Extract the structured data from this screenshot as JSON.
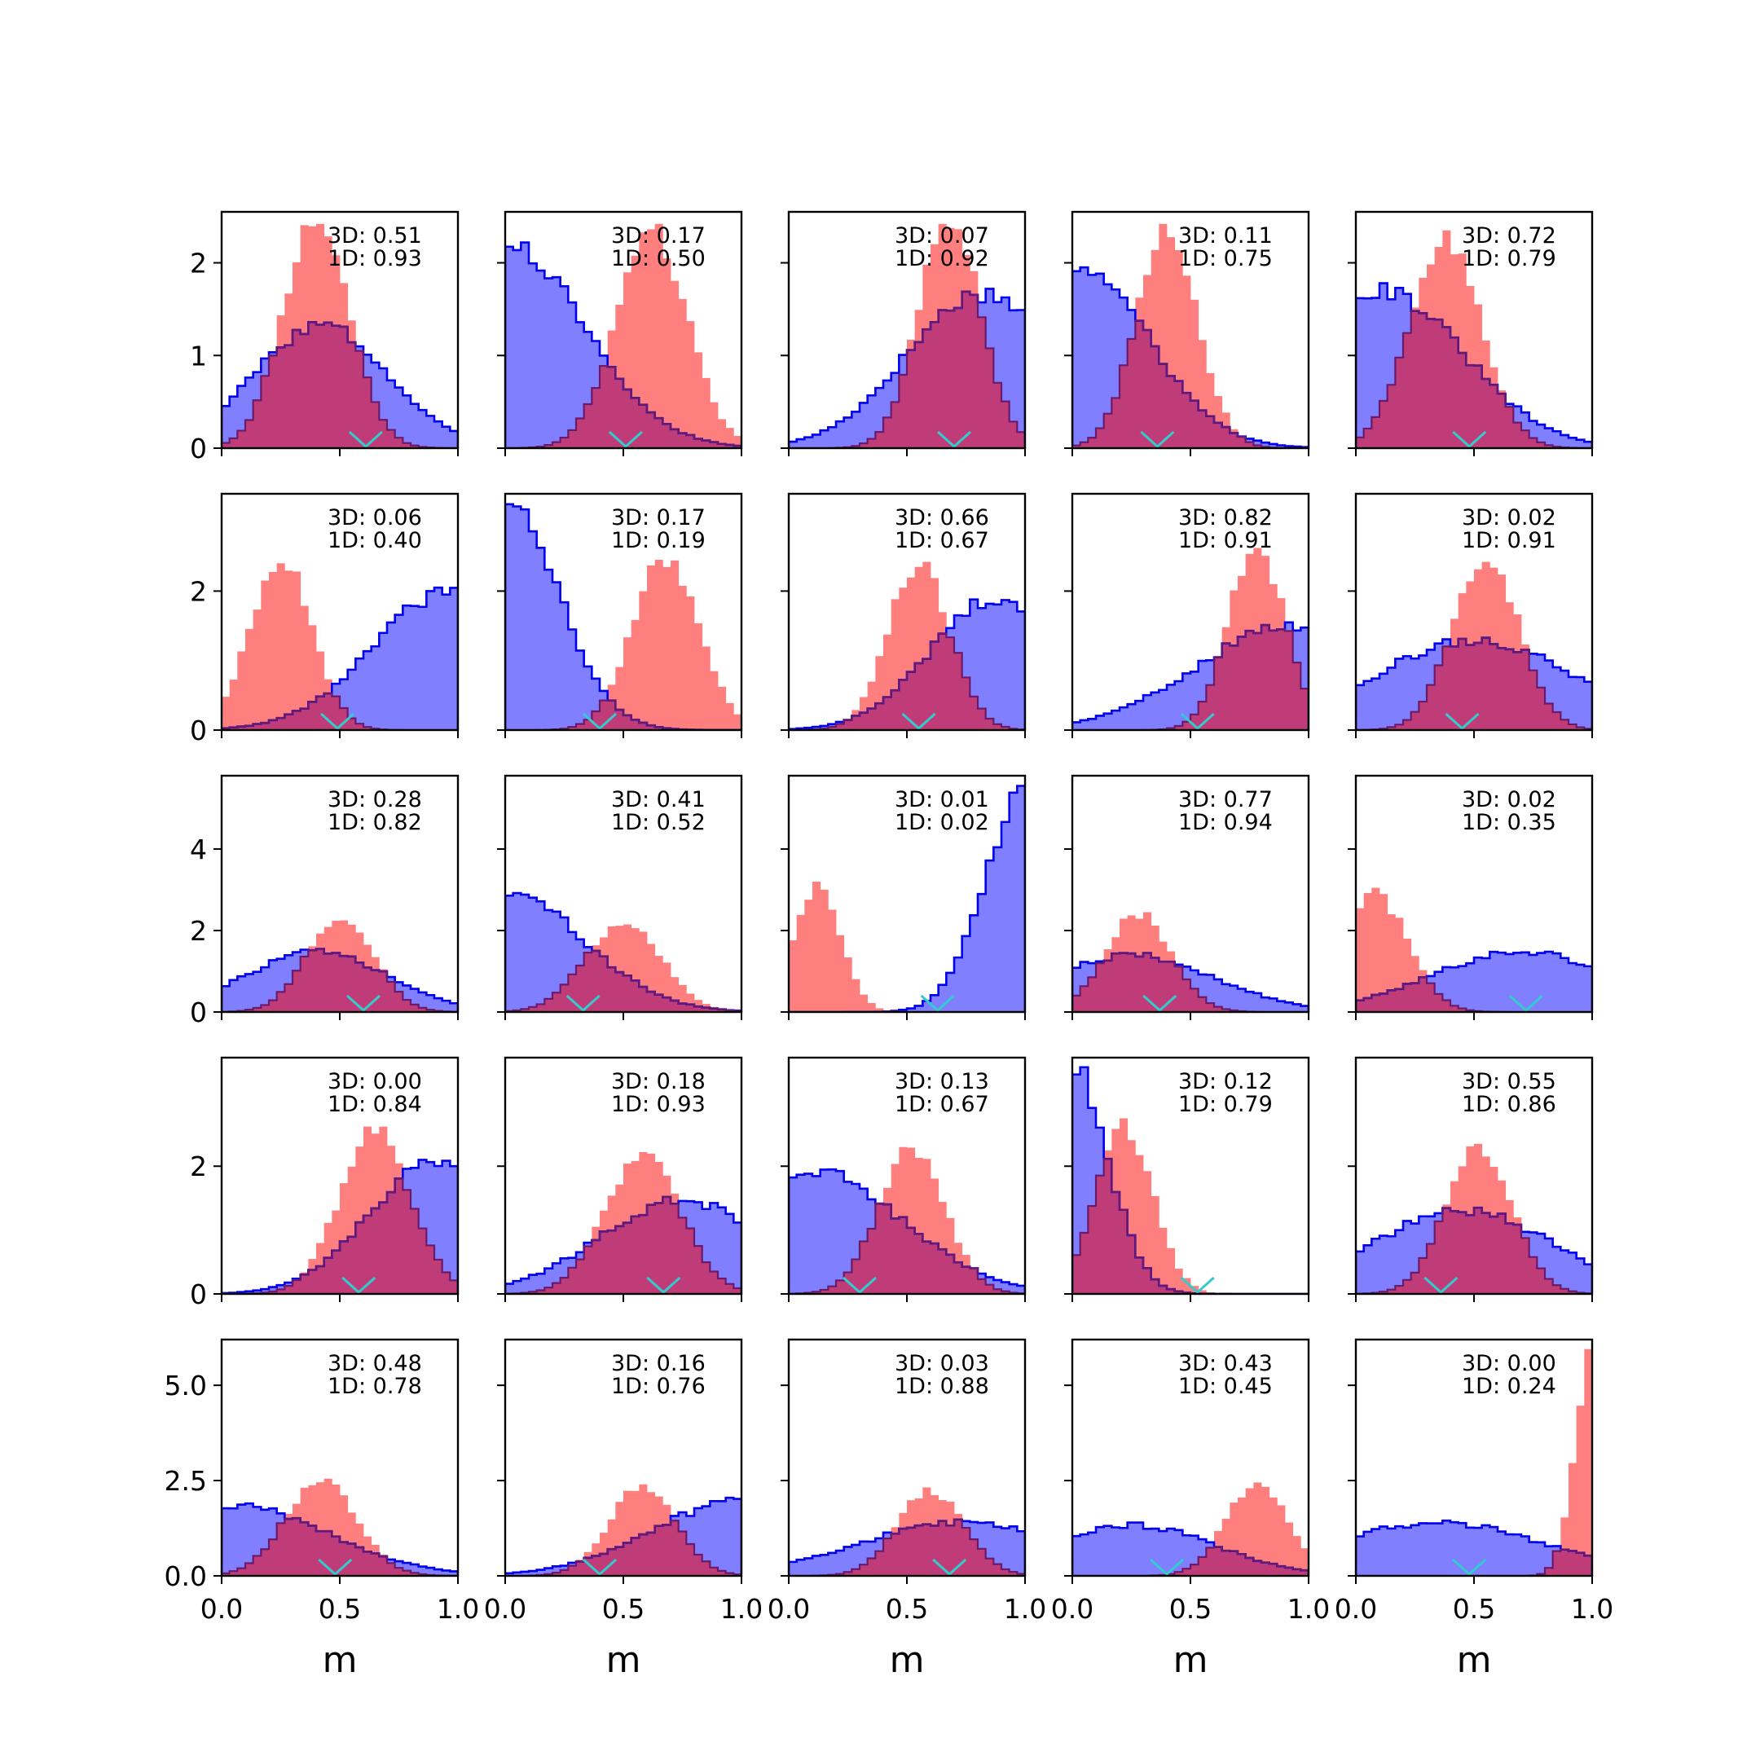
{
  "chart_data": {
    "type": "histogram-grid",
    "xlabel": "m",
    "xlim": [
      0,
      1
    ],
    "xticks": [
      "0.0",
      "0.5",
      "1.0"
    ],
    "bins": 30,
    "series_colors": {
      "wide": "#0000ee",
      "wide_fill": "#7f7fff",
      "narrow_fill": "#ff7f7f",
      "overlap": "#c03c78",
      "marker": "#33cccc"
    },
    "rows": [
      {
        "ylim": [
          0,
          2.55
        ],
        "yticks": [
          {
            "v": 0,
            "label": "0"
          },
          {
            "v": 1,
            "label": "1"
          },
          {
            "v": 2,
            "label": "2"
          }
        ]
      },
      {
        "ylim": [
          0,
          3.4
        ],
        "yticks": [
          {
            "v": 0,
            "label": "0"
          },
          {
            "v": 2,
            "label": "2"
          }
        ]
      },
      {
        "ylim": [
          0,
          5.8
        ],
        "yticks": [
          {
            "v": 0,
            "label": "0"
          },
          {
            "v": 2,
            "label": "2"
          },
          {
            "v": 4,
            "label": "4"
          }
        ]
      },
      {
        "ylim": [
          0,
          3.7
        ],
        "yticks": [
          {
            "v": 0,
            "label": "0"
          },
          {
            "v": 2,
            "label": "2"
          }
        ]
      },
      {
        "ylim": [
          0,
          6.2
        ],
        "yticks": [
          {
            "v": 0,
            "label": "0.0"
          },
          {
            "v": 2.5,
            "label": "2.5"
          },
          {
            "v": 5,
            "label": "5.0"
          }
        ]
      }
    ],
    "panels": [
      {
        "label3d": "3D: 0.51",
        "label1d": "1D: 0.93",
        "marker": 0.61,
        "blue": {
          "mu": 0.42,
          "sigma": 0.28,
          "w": 1.0,
          "max": 1.36
        },
        "red": {
          "mu": 0.4,
          "sigma": 0.14,
          "w": 1.0,
          "max": 2.42
        }
      },
      {
        "label3d": "3D: 0.17",
        "label1d": "1D: 0.50",
        "marker": 0.51,
        "blue": {
          "mu": 0.0,
          "sigma": 0.33,
          "w": 1.0,
          "max": 2.22
        },
        "red": {
          "mu": 0.62,
          "sigma": 0.15,
          "w": 1.0,
          "max": 2.42
        }
      },
      {
        "label3d": "3D: 0.07",
        "label1d": "1D: 0.92",
        "marker": 0.7,
        "blue": {
          "mu": 0.82,
          "sigma": 0.32,
          "w": 1.0,
          "max": 1.72
        },
        "red": {
          "mu": 0.68,
          "sigma": 0.13,
          "w": 1.0,
          "max": 2.42
        }
      },
      {
        "label3d": "3D: 0.11",
        "label1d": "1D: 0.75",
        "marker": 0.36,
        "blue": {
          "mu": 0.02,
          "sigma": 0.3,
          "w": 1.0,
          "max": 1.95
        },
        "red": {
          "mu": 0.4,
          "sigma": 0.13,
          "w": 1.0,
          "max": 2.42
        }
      },
      {
        "label3d": "3D: 0.72",
        "label1d": "1D: 0.79",
        "marker": 0.48,
        "blue": {
          "mu": 0.1,
          "sigma": 0.35,
          "w": 1.0,
          "max": 1.78
        },
        "red": {
          "mu": 0.38,
          "sigma": 0.15,
          "w": 1.0,
          "max": 2.35
        }
      },
      {
        "label3d": "3D: 0.06",
        "label1d": "1D: 0.40",
        "marker": 0.49,
        "blue": {
          "mu": 0.98,
          "sigma": 0.33,
          "w": 1.0,
          "max": 2.05
        },
        "red": {
          "mu": 0.25,
          "sigma": 0.13,
          "w": 1.0,
          "max": 2.4
        }
      },
      {
        "label3d": "3D: 0.17",
        "label1d": "1D: 0.19",
        "marker": 0.4,
        "blue": {
          "mu": 0.0,
          "sigma": 0.22,
          "w": 1.0,
          "max": 3.25
        },
        "red": {
          "mu": 0.68,
          "sigma": 0.14,
          "w": 1.0,
          "max": 2.45
        }
      },
      {
        "label3d": "3D: 0.66",
        "label1d": "1D: 0.67",
        "marker": 0.55,
        "blue": {
          "mu": 0.88,
          "sigma": 0.28,
          "w": 1.0,
          "max": 1.88
        },
        "red": {
          "mu": 0.55,
          "sigma": 0.13,
          "w": 1.0,
          "max": 2.42
        }
      },
      {
        "label3d": "3D: 0.82",
        "label1d": "1D: 0.91",
        "marker": 0.53,
        "blue": {
          "mu": 0.92,
          "sigma": 0.4,
          "w": 1.0,
          "max": 1.55
        },
        "red": {
          "mu": 0.78,
          "sigma": 0.12,
          "w": 1.0,
          "max": 2.62
        }
      },
      {
        "label3d": "3D: 0.02",
        "label1d": "1D: 0.91",
        "marker": 0.45,
        "blue": {
          "mu": 0.5,
          "sigma": 0.42,
          "w": 1.0,
          "max": 1.33
        },
        "red": {
          "mu": 0.55,
          "sigma": 0.14,
          "w": 1.0,
          "max": 2.42
        }
      },
      {
        "label3d": "3D: 0.28",
        "label1d": "1D: 0.82",
        "marker": 0.6,
        "blue": {
          "mu": 0.4,
          "sigma": 0.3,
          "w": 1.0,
          "max": 1.55
        },
        "red": {
          "mu": 0.5,
          "sigma": 0.14,
          "w": 1.0,
          "max": 2.25
        }
      },
      {
        "label3d": "3D: 0.41",
        "label1d": "1D: 0.52",
        "marker": 0.33,
        "blue": {
          "mu": 0.0,
          "sigma": 0.33,
          "w": 1.0,
          "max": 2.92
        },
        "red": {
          "mu": 0.5,
          "sigma": 0.16,
          "w": 1.0,
          "max": 2.15
        }
      },
      {
        "label3d": "3D: 0.01",
        "label1d": "1D: 0.02",
        "marker": 0.63,
        "blue": {
          "mu": 1.0,
          "sigma": 0.17,
          "w": 1.0,
          "max": 5.55
        },
        "red": {
          "mu": 0.12,
          "sigma": 0.1,
          "w": 1.0,
          "max": 3.2
        }
      },
      {
        "label3d": "3D: 0.77",
        "label1d": "1D: 0.94",
        "marker": 0.37,
        "blue": {
          "mu": 0.25,
          "sigma": 0.35,
          "w": 1.0,
          "max": 1.45
        },
        "red": {
          "mu": 0.28,
          "sigma": 0.14,
          "w": 1.0,
          "max": 2.45
        }
      },
      {
        "label3d": "3D: 0.02",
        "label1d": "1D: 0.35",
        "marker": 0.72,
        "blue": {
          "mu": 0.7,
          "sigma": 0.38,
          "w": 1.0,
          "max": 1.48
        },
        "red": {
          "mu": 0.08,
          "sigma": 0.14,
          "w": 1.0,
          "max": 3.05
        }
      },
      {
        "label3d": "3D: 0.00",
        "label1d": "1D: 0.84",
        "marker": 0.58,
        "blue": {
          "mu": 0.9,
          "sigma": 0.28,
          "w": 1.0,
          "max": 2.1
        },
        "red": {
          "mu": 0.65,
          "sigma": 0.15,
          "w": 1.0,
          "max": 2.62
        }
      },
      {
        "label3d": "3D: 0.18",
        "label1d": "1D: 0.93",
        "marker": 0.67,
        "blue": {
          "mu": 0.75,
          "sigma": 0.35,
          "w": 1.0,
          "max": 1.52
        },
        "red": {
          "mu": 0.58,
          "sigma": 0.16,
          "w": 1.0,
          "max": 2.22
        }
      },
      {
        "label3d": "3D: 0.13",
        "label1d": "1D: 0.67",
        "marker": 0.3,
        "blue": {
          "mu": 0.1,
          "sigma": 0.38,
          "w": 1.0,
          "max": 1.95
        },
        "red": {
          "mu": 0.52,
          "sigma": 0.14,
          "w": 1.0,
          "max": 2.3
        }
      },
      {
        "label3d": "3D: 0.12",
        "label1d": "1D: 0.79",
        "marker": 0.53,
        "blue": {
          "mu": 0.0,
          "sigma": 0.15,
          "w": 1.0,
          "max": 3.55
        },
        "red": {
          "mu": 0.22,
          "sigma": 0.12,
          "w": 1.0,
          "max": 2.75
        }
      },
      {
        "label3d": "3D: 0.55",
        "label1d": "1D: 0.86",
        "marker": 0.36,
        "blue": {
          "mu": 0.45,
          "sigma": 0.38,
          "w": 1.0,
          "max": 1.35
        },
        "red": {
          "mu": 0.52,
          "sigma": 0.14,
          "w": 1.0,
          "max": 2.35
        }
      },
      {
        "label3d": "3D: 0.48",
        "label1d": "1D: 0.78",
        "marker": 0.48,
        "blue": {
          "mu": 0.05,
          "sigma": 0.4,
          "w": 1.0,
          "max": 1.9
        },
        "red": {
          "mu": 0.42,
          "sigma": 0.15,
          "w": 1.0,
          "max": 2.55
        }
      },
      {
        "label3d": "3D: 0.16",
        "label1d": "1D: 0.76",
        "marker": 0.4,
        "blue": {
          "mu": 1.0,
          "sigma": 0.38,
          "w": 1.0,
          "max": 2.05
        },
        "red": {
          "mu": 0.58,
          "sigma": 0.14,
          "w": 1.0,
          "max": 2.4
        }
      },
      {
        "label3d": "3D: 0.03",
        "label1d": "1D: 0.88",
        "marker": 0.68,
        "blue": {
          "mu": 0.75,
          "sigma": 0.45,
          "w": 1.0,
          "max": 1.48
        },
        "red": {
          "mu": 0.6,
          "sigma": 0.14,
          "w": 1.0,
          "max": 2.32
        }
      },
      {
        "label3d": "3D: 0.43",
        "label1d": "1D: 0.45",
        "marker": 0.4,
        "blue": {
          "mu": 0.25,
          "sigma": 0.35,
          "w": 1.0,
          "max": 1.4
        },
        "red": {
          "mu": 0.78,
          "sigma": 0.13,
          "w": 1.0,
          "max": 2.45
        }
      },
      {
        "label3d": "3D: 0.00",
        "label1d": "1D: 0.24",
        "marker": 0.48,
        "blue": {
          "mu": 0.35,
          "sigma": 0.45,
          "w": 1.0,
          "max": 1.45
        },
        "red": {
          "mu": 1.0,
          "sigma": 0.07,
          "w": 1.0,
          "max": 5.95
        }
      }
    ]
  }
}
